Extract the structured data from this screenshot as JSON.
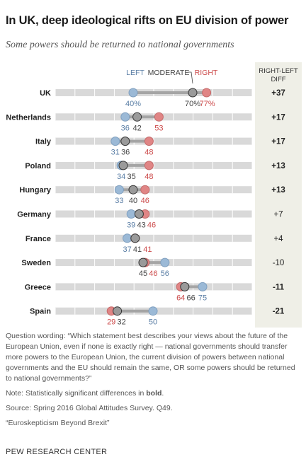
{
  "title": "In UK, deep ideological rifts on EU division of power",
  "subtitle": "Some powers should be returned to national governments",
  "legend": {
    "left": "LEFT",
    "moderate": "MODERATE",
    "right": "RIGHT"
  },
  "diff_header": [
    "RIGHT-LEFT",
    "DIFF"
  ],
  "colors": {
    "left": "#9bb9d6",
    "moderate": "#9a9a9a",
    "right": "#e08585",
    "left_text": "#5a7ea5",
    "right_text": "#cc4a4a",
    "moderate_text": "#444444",
    "track": "#d9d9d9",
    "connector": "#a5a5a5",
    "diff_col": "#efefe7"
  },
  "chart_data": {
    "type": "dot-range",
    "title": "In UK, deep ideological rifts on EU division of power",
    "subtitle": "Some powers should be returned to national governments",
    "xlim": [
      0,
      100
    ],
    "series": [
      {
        "name": "LEFT",
        "values": [
          40,
          36,
          31,
          34,
          33,
          39,
          37,
          56,
          75,
          50
        ]
      },
      {
        "name": "MODERATE",
        "values": [
          70,
          42,
          36,
          35,
          40,
          43,
          41,
          45,
          66,
          32
        ]
      },
      {
        "name": "RIGHT",
        "values": [
          77,
          53,
          48,
          48,
          46,
          46,
          41,
          46,
          64,
          29
        ]
      }
    ],
    "rows": [
      {
        "country": "UK",
        "left": 40,
        "moderate": 70,
        "right": 77,
        "labels": [
          "40%",
          "70%",
          "77%"
        ],
        "diff": "+37",
        "bold": true
      },
      {
        "country": "Netherlands",
        "left": 36,
        "moderate": 42,
        "right": 53,
        "labels": [
          "36",
          "42",
          "53"
        ],
        "diff": "+17",
        "bold": true
      },
      {
        "country": "Italy",
        "left": 31,
        "moderate": 36,
        "right": 48,
        "labels": [
          "31",
          "36",
          "48"
        ],
        "diff": "+17",
        "bold": true
      },
      {
        "country": "Poland",
        "left": 34,
        "moderate": 35,
        "right": 48,
        "labels": [
          "34",
          "35",
          "48"
        ],
        "diff": "+13",
        "bold": true
      },
      {
        "country": "Hungary",
        "left": 33,
        "moderate": 40,
        "right": 46,
        "labels": [
          "33",
          "40",
          "46"
        ],
        "diff": "+13",
        "bold": true
      },
      {
        "country": "Germany",
        "left": 39,
        "moderate": 43,
        "right": 46,
        "labels": [
          "39",
          "43",
          "46"
        ],
        "diff": "+7",
        "bold": false
      },
      {
        "country": "France",
        "left": 37,
        "moderate": 41,
        "right": 41,
        "labels": [
          "37",
          "41",
          "41"
        ],
        "diff": "+4",
        "bold": false
      },
      {
        "country": "Sweden",
        "left": 56,
        "moderate": 45,
        "right": 46,
        "labels": [
          "56",
          "45",
          "46"
        ],
        "diff": "-10",
        "bold": false
      },
      {
        "country": "Greece",
        "left": 75,
        "moderate": 66,
        "right": 64,
        "labels": [
          "75",
          "66",
          "64"
        ],
        "diff": "-11",
        "bold": true
      },
      {
        "country": "Spain",
        "left": 50,
        "moderate": 32,
        "right": 29,
        "labels": [
          "50",
          "32",
          "29"
        ],
        "diff": "-21",
        "bold": true
      }
    ]
  },
  "notes": {
    "question": "Question wording: “Which statement best describes your views about the future of the European Union, even if none is exactly right — national governments should transfer more powers to the European Union, the current division of powers between national governments and the EU should remain the same, OR some powers should be returned to national governments?”",
    "note_prefix": "Note: Statistically significant differences in",
    "note_bold": "bold",
    "note_suffix": ".",
    "source": "Source: Spring 2016 Global Attitudes Survey. Q49.",
    "report": "“Euroskepticism Beyond Brexit”",
    "org": "PEW RESEARCH CENTER"
  }
}
